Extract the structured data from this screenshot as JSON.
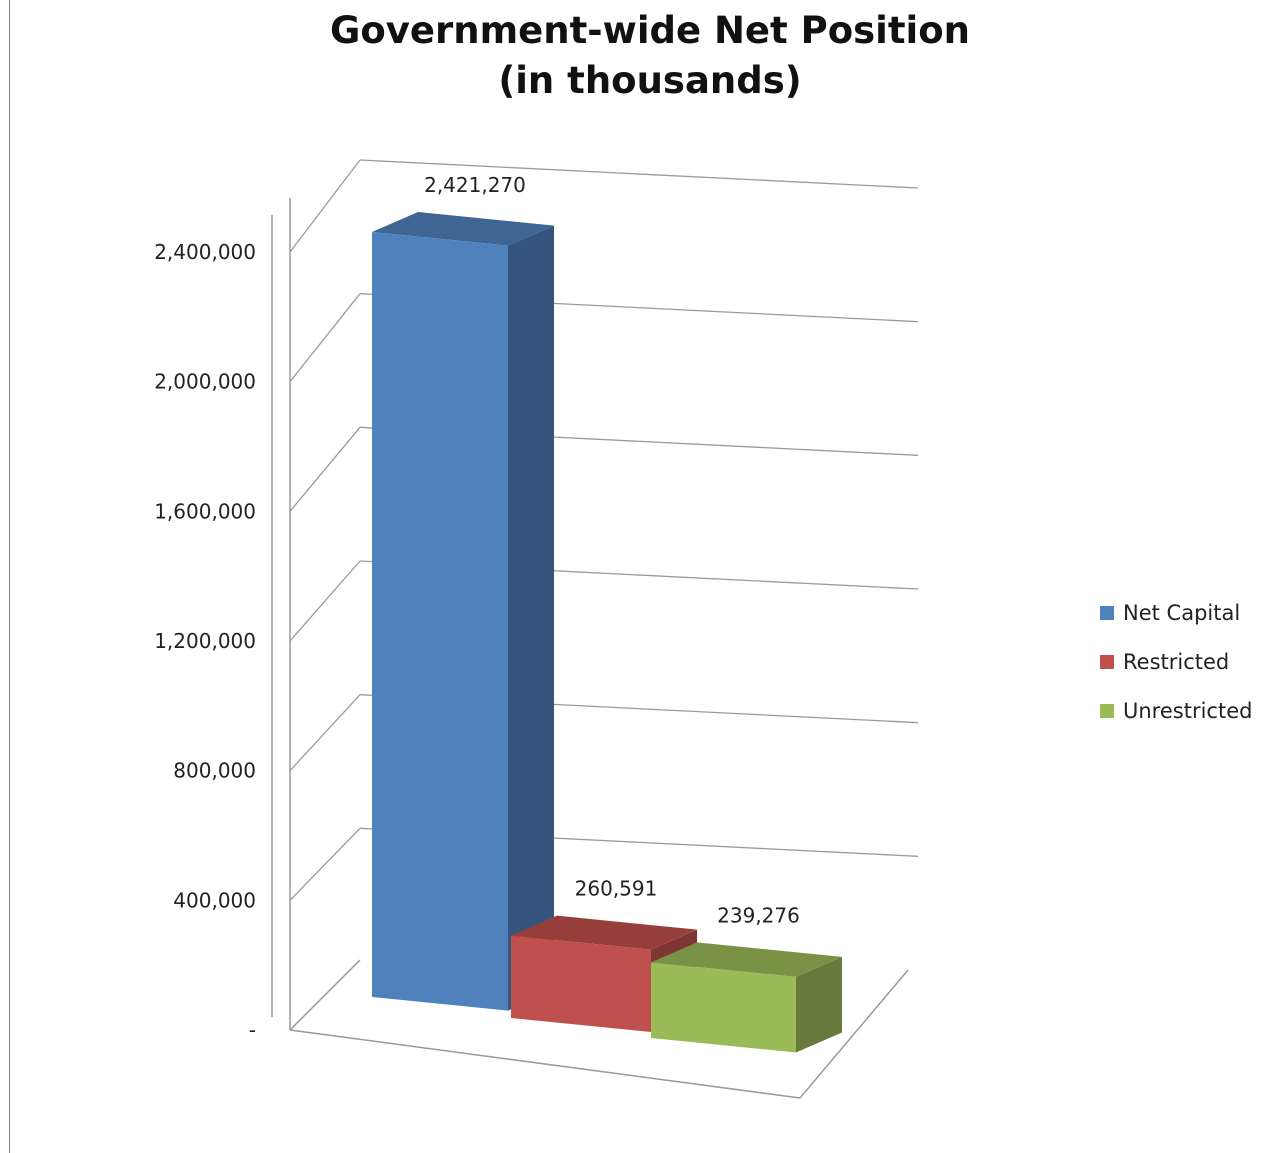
{
  "chart_data": {
    "type": "bar",
    "title": [
      "Government-wide Net Position",
      "(in thousands)"
    ],
    "categories": [
      "Net Capital",
      "Restricted",
      "Unrestricted"
    ],
    "values": [
      2421270,
      260591,
      239276
    ],
    "value_labels": [
      "2,421,270",
      "260,591",
      "239,276"
    ],
    "colors": [
      "#4F81BD",
      "#C0504D",
      "#9BBB59"
    ],
    "ylim": [
      0,
      2400000
    ],
    "yticks": [
      0,
      400000,
      800000,
      1200000,
      1600000,
      2000000,
      2400000
    ],
    "ytick_labels": [
      "-",
      "400,000",
      "800,000",
      "1,200,000",
      "1,600,000",
      "2,000,000",
      "2,400,000"
    ],
    "grid": true,
    "three_d": true,
    "legend": {
      "position": "right",
      "entries": [
        "Net Capital",
        "Restricted",
        "Unrestricted"
      ]
    }
  }
}
